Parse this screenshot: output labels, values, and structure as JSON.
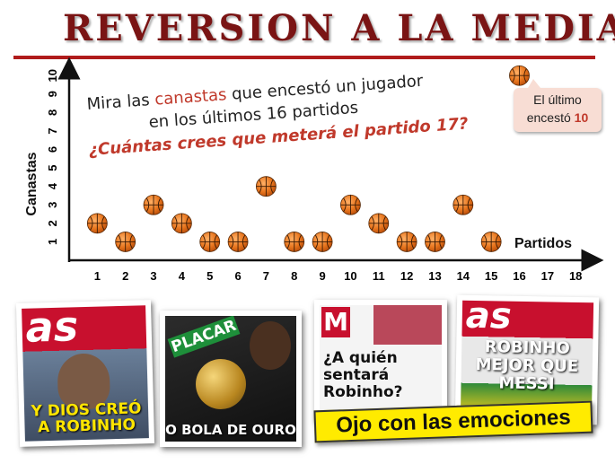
{
  "title": "REVERSION A LA MEDIA",
  "prompt": {
    "line1_pre": "Mira las ",
    "line1_accent": "canastas",
    "line1_post": " que encestó un jugador",
    "line2": "en los últimos 16 partidos",
    "question": "¿Cuántas crees que meterá el partido 17?"
  },
  "callout": {
    "line1": "El último",
    "line2_pre": "encestó ",
    "value": "10"
  },
  "colors": {
    "title": "#7a1414",
    "accent": "#c0392b",
    "ball": "#e8761e",
    "banner": "#ffeb00"
  },
  "chart_data": {
    "type": "scatter",
    "xlabel": "Partidos",
    "ylabel": "Canastas",
    "x_ticks": [
      1,
      2,
      3,
      4,
      5,
      6,
      7,
      8,
      9,
      10,
      11,
      12,
      13,
      14,
      15,
      16,
      17,
      18
    ],
    "y_ticks": [
      1,
      2,
      3,
      4,
      5,
      6,
      7,
      8,
      9,
      10
    ],
    "xlim": [
      0,
      18.6
    ],
    "ylim": [
      0,
      10.4
    ],
    "marker": "basketball",
    "points": [
      {
        "x": 1,
        "y": 2
      },
      {
        "x": 2,
        "y": 1
      },
      {
        "x": 3,
        "y": 3
      },
      {
        "x": 4,
        "y": 2
      },
      {
        "x": 5,
        "y": 1
      },
      {
        "x": 6,
        "y": 1
      },
      {
        "x": 7,
        "y": 4
      },
      {
        "x": 8,
        "y": 1
      },
      {
        "x": 9,
        "y": 1
      },
      {
        "x": 10,
        "y": 3
      },
      {
        "x": 11,
        "y": 2
      },
      {
        "x": 12,
        "y": 1
      },
      {
        "x": 13,
        "y": 1
      },
      {
        "x": 14,
        "y": 3
      },
      {
        "x": 15,
        "y": 1
      },
      {
        "x": 16,
        "y": 10
      }
    ]
  },
  "covers": [
    {
      "masthead": "as",
      "headline": "Y DIOS CREÓ A ROBINHO"
    },
    {
      "masthead": "PLACAR",
      "headline": "O BOLA DE OURO"
    },
    {
      "masthead": "M",
      "headline": "¿A quién sentará Robinho?"
    },
    {
      "masthead": "as",
      "headline": "ROBINHO MEJOR QUE MESSI"
    }
  ],
  "banner": "Ojo con las emociones"
}
